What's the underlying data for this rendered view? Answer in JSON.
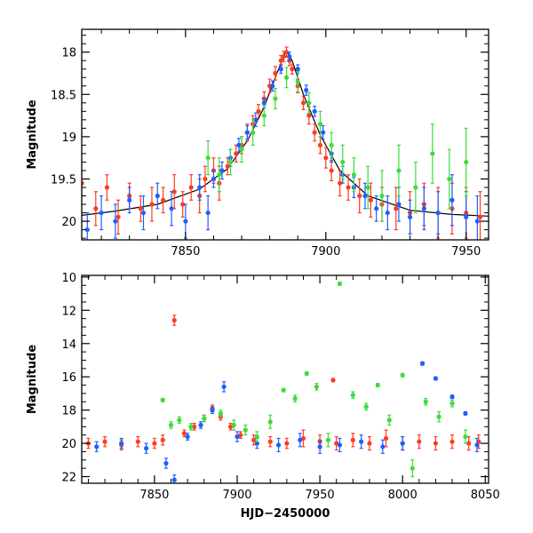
{
  "chart_data": [
    {
      "type": "scatter",
      "panel": "top",
      "title": "",
      "xlabel": "",
      "ylabel": "Magnitude",
      "xlim": [
        7813,
        7958
      ],
      "ylim": [
        20.22,
        17.73
      ],
      "y_inverted": true,
      "xticks": [
        7850,
        7900,
        7950
      ],
      "xtick_labels": [
        "7850",
        "7900",
        "7950"
      ],
      "yticks": [
        18,
        18.5,
        19,
        19.5,
        20
      ],
      "ytick_labels": [
        "18",
        "18.5",
        "19",
        "19.5",
        "20"
      ],
      "grid": false,
      "legend": "none",
      "series": [
        {
          "color": "#ff3b1f",
          "marker": "circle-with-errorbar",
          "x": [
            7813,
            7818,
            7822,
            7826,
            7830,
            7834,
            7838,
            7842,
            7846,
            7849,
            7852,
            7855,
            7857,
            7860,
            7862,
            7865,
            7868,
            7870,
            7872,
            7874,
            7876,
            7878,
            7880,
            7882,
            7884,
            7885,
            7886,
            7887,
            7888,
            7890,
            7892,
            7894,
            7896,
            7898,
            7900,
            7902,
            7905,
            7908,
            7912,
            7916,
            7920,
            7925,
            7930,
            7935,
            7940,
            7945,
            7950,
            7955
          ],
          "y": [
            19.55,
            19.85,
            19.6,
            19.95,
            19.7,
            19.85,
            19.8,
            19.75,
            19.65,
            19.8,
            19.6,
            19.7,
            19.5,
            19.4,
            19.55,
            19.35,
            19.2,
            19.1,
            18.95,
            18.85,
            18.7,
            18.55,
            18.4,
            18.25,
            18.1,
            18.05,
            18.0,
            18.1,
            18.2,
            18.4,
            18.6,
            18.75,
            18.95,
            19.1,
            19.25,
            19.4,
            19.55,
            19.6,
            19.7,
            19.75,
            19.8,
            19.85,
            19.9,
            19.8,
            19.9,
            19.85,
            19.9,
            19.95
          ],
          "yerr": [
            0.15,
            0.2,
            0.15,
            0.2,
            0.15,
            0.15,
            0.2,
            0.15,
            0.2,
            0.15,
            0.15,
            0.2,
            0.15,
            0.15,
            0.2,
            0.1,
            0.1,
            0.1,
            0.1,
            0.1,
            0.08,
            0.08,
            0.08,
            0.08,
            0.06,
            0.06,
            0.06,
            0.06,
            0.06,
            0.08,
            0.08,
            0.1,
            0.1,
            0.1,
            0.12,
            0.12,
            0.15,
            0.15,
            0.2,
            0.2,
            0.2,
            0.25,
            0.25,
            0.25,
            0.3,
            0.3,
            0.3,
            0.3
          ]
        },
        {
          "color": "#1f5fff",
          "marker": "circle-with-errorbar",
          "x": [
            7815,
            7820,
            7825,
            7830,
            7835,
            7840,
            7845,
            7850,
            7855,
            7858,
            7860,
            7863,
            7866,
            7869,
            7872,
            7875,
            7878,
            7881,
            7884,
            7887,
            7890,
            7893,
            7896,
            7899,
            7902,
            7906,
            7910,
            7914,
            7918,
            7922,
            7926,
            7930,
            7935,
            7940,
            7945,
            7950,
            7954
          ],
          "y": [
            20.1,
            19.9,
            20.0,
            19.75,
            19.9,
            19.7,
            19.85,
            20.0,
            19.6,
            19.9,
            19.5,
            19.4,
            19.25,
            19.1,
            18.95,
            18.8,
            18.6,
            18.4,
            18.2,
            18.05,
            18.2,
            18.45,
            18.7,
            18.95,
            19.2,
            19.45,
            19.6,
            19.7,
            19.85,
            19.9,
            19.8,
            19.95,
            19.85,
            19.9,
            19.75,
            19.95,
            20.0
          ],
          "yerr": [
            0.2,
            0.2,
            0.2,
            0.15,
            0.2,
            0.15,
            0.2,
            0.2,
            0.15,
            0.2,
            0.1,
            0.1,
            0.1,
            0.08,
            0.08,
            0.08,
            0.06,
            0.06,
            0.05,
            0.05,
            0.05,
            0.06,
            0.06,
            0.08,
            0.1,
            0.1,
            0.12,
            0.15,
            0.15,
            0.2,
            0.2,
            0.2,
            0.25,
            0.25,
            0.3,
            0.3,
            0.3
          ]
        },
        {
          "color": "#3ddc3d",
          "marker": "circle-with-errorbar",
          "x": [
            7858,
            7862,
            7866,
            7870,
            7874,
            7878,
            7882,
            7886,
            7890,
            7894,
            7898,
            7902,
            7906,
            7910,
            7915,
            7920,
            7926,
            7932,
            7938,
            7944,
            7950
          ],
          "y": [
            19.25,
            19.45,
            19.3,
            19.15,
            18.95,
            18.75,
            18.55,
            18.3,
            18.35,
            18.6,
            18.85,
            19.1,
            19.3,
            19.45,
            19.6,
            19.7,
            19.4,
            19.6,
            19.2,
            19.5,
            19.3
          ],
          "yerr": [
            0.2,
            0.2,
            0.15,
            0.15,
            0.15,
            0.12,
            0.12,
            0.12,
            0.12,
            0.12,
            0.15,
            0.15,
            0.2,
            0.2,
            0.25,
            0.3,
            0.3,
            0.3,
            0.35,
            0.35,
            0.4
          ]
        }
      ],
      "model_curve": {
        "color": "#000000",
        "x": [
          7813,
          7825,
          7840,
          7855,
          7865,
          7872,
          7878,
          7882,
          7885,
          7886,
          7888,
          7892,
          7898,
          7905,
          7915,
          7930,
          7945,
          7958
        ],
        "y": [
          19.93,
          19.88,
          19.8,
          19.62,
          19.38,
          19.05,
          18.65,
          18.3,
          18.05,
          17.98,
          18.1,
          18.5,
          18.98,
          19.4,
          19.7,
          19.87,
          19.92,
          19.94
        ]
      }
    },
    {
      "type": "scatter",
      "panel": "bottom",
      "title": "",
      "xlabel": "HJD−2450000",
      "ylabel": "Magnitude",
      "xlim": [
        7806,
        8052
      ],
      "ylim": [
        22.4,
        9.9
      ],
      "y_inverted": true,
      "xticks": [
        7850,
        7900,
        7950,
        8000,
        8050
      ],
      "xtick_labels": [
        "7850",
        "7900",
        "7950",
        "8000",
        "8050"
      ],
      "yticks": [
        10,
        12,
        14,
        16,
        18,
        20,
        22
      ],
      "ytick_labels": [
        "10",
        "12",
        "14",
        "16",
        "18",
        "20",
        "22"
      ],
      "grid": false,
      "legend": "none",
      "series": [
        {
          "color": "#ff3b1f",
          "marker": "circle-with-errorbar",
          "x": [
            7810,
            7820,
            7830,
            7840,
            7850,
            7855,
            7862,
            7868,
            7874,
            7880,
            7885,
            7890,
            7896,
            7902,
            7910,
            7920,
            7930,
            7940,
            7950,
            7958,
            7960,
            7970,
            7980,
            7990,
            8000,
            8010,
            8020,
            8030,
            8040,
            8046
          ],
          "y": [
            20.0,
            19.9,
            20.1,
            19.9,
            20.0,
            19.8,
            12.6,
            19.4,
            19.0,
            18.5,
            17.9,
            18.4,
            19.0,
            19.5,
            19.8,
            19.9,
            20.0,
            19.7,
            19.9,
            16.2,
            20.0,
            19.8,
            20.0,
            19.7,
            20.0,
            19.9,
            20.0,
            19.9,
            20.0,
            19.9
          ],
          "yerr": [
            0.3,
            0.3,
            0.3,
            0.3,
            0.3,
            0.3,
            0.3,
            0.2,
            0.2,
            0.2,
            0.2,
            0.2,
            0.2,
            0.2,
            0.3,
            0.3,
            0.3,
            0.5,
            0.4,
            0.1,
            0.4,
            0.4,
            0.4,
            0.5,
            0.4,
            0.4,
            0.4,
            0.4,
            0.4,
            0.4
          ]
        },
        {
          "color": "#1f5fff",
          "marker": "circle-with-errorbar",
          "x": [
            7815,
            7830,
            7845,
            7857,
            7862,
            7870,
            7878,
            7885,
            7892,
            7900,
            7912,
            7925,
            7938,
            7950,
            7962,
            7975,
            7988,
            8000,
            8012,
            8020,
            8030,
            8038,
            8045
          ],
          "y": [
            20.2,
            20.0,
            20.3,
            21.2,
            22.2,
            19.6,
            18.9,
            18.0,
            16.6,
            19.6,
            20.0,
            20.1,
            19.8,
            20.2,
            20.1,
            19.9,
            20.2,
            20.0,
            15.2,
            16.1,
            17.2,
            18.2,
            20.1
          ],
          "yerr": [
            0.3,
            0.3,
            0.3,
            0.3,
            0.3,
            0.2,
            0.2,
            0.2,
            0.3,
            0.3,
            0.3,
            0.4,
            0.4,
            0.4,
            0.4,
            0.4,
            0.4,
            0.4,
            0.1,
            0.1,
            0.1,
            0.1,
            0.4
          ]
        },
        {
          "color": "#3ddc3d",
          "marker": "circle-with-errorbar",
          "x": [
            7855,
            7860,
            7865,
            7872,
            7880,
            7890,
            7898,
            7905,
            7912,
            7920,
            7928,
            7935,
            7942,
            7948,
            7955,
            7962,
            7970,
            7978,
            7985,
            7992,
            8000,
            8006,
            8014,
            8022,
            8030,
            8038
          ],
          "y": [
            17.4,
            18.9,
            18.6,
            19.0,
            18.5,
            18.2,
            18.9,
            19.2,
            19.6,
            18.7,
            16.8,
            17.3,
            15.8,
            16.6,
            19.8,
            10.4,
            17.1,
            17.8,
            16.5,
            18.6,
            15.9,
            21.5,
            17.5,
            18.4,
            17.6,
            19.6
          ],
          "yerr": [
            0.1,
            0.2,
            0.2,
            0.2,
            0.2,
            0.2,
            0.3,
            0.3,
            0.3,
            0.4,
            0.1,
            0.2,
            0.1,
            0.2,
            0.4,
            0.1,
            0.2,
            0.2,
            0.1,
            0.3,
            0.1,
            0.5,
            0.2,
            0.3,
            0.2,
            0.4
          ]
        }
      ]
    }
  ]
}
